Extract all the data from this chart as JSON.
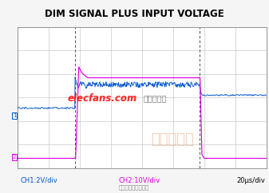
{
  "title": "DIM SIGNAL PLUS INPUT VOLTAGE",
  "title_fontsize": 8.5,
  "bg_color": "#f5f5f5",
  "plot_bg_color": "#ffffff",
  "grid_color": "#bbbbbb",
  "grid_cols": 8,
  "grid_rows": 6,
  "ch1_color": "#0055cc",
  "ch2_color": "#dd00dd",
  "dashed_line_color": "#333333",
  "ch1_label": "CH1:2V/div",
  "ch2_label": "CH2:10V/div",
  "time_label": "20μs/div",
  "watermark_red": "elecfans.com",
  "watermark_cn": "电子发烧友",
  "watermark2": "易迪拓培训",
  "watermark3": "射频和天线设计专家",
  "xmin": 0,
  "xmax": 8,
  "ymin": 0,
  "ymax": 6,
  "ch1_low_y": 2.55,
  "ch1_high_y": 3.55,
  "ch1_after_fall_y": 3.1,
  "ch2_base_y": 0.42,
  "ch2_high_y": 3.85,
  "rise_x": 1.85,
  "fall_x": 5.85,
  "noise_amplitude_high": 0.12,
  "noise_amplitude_low": 0.035
}
